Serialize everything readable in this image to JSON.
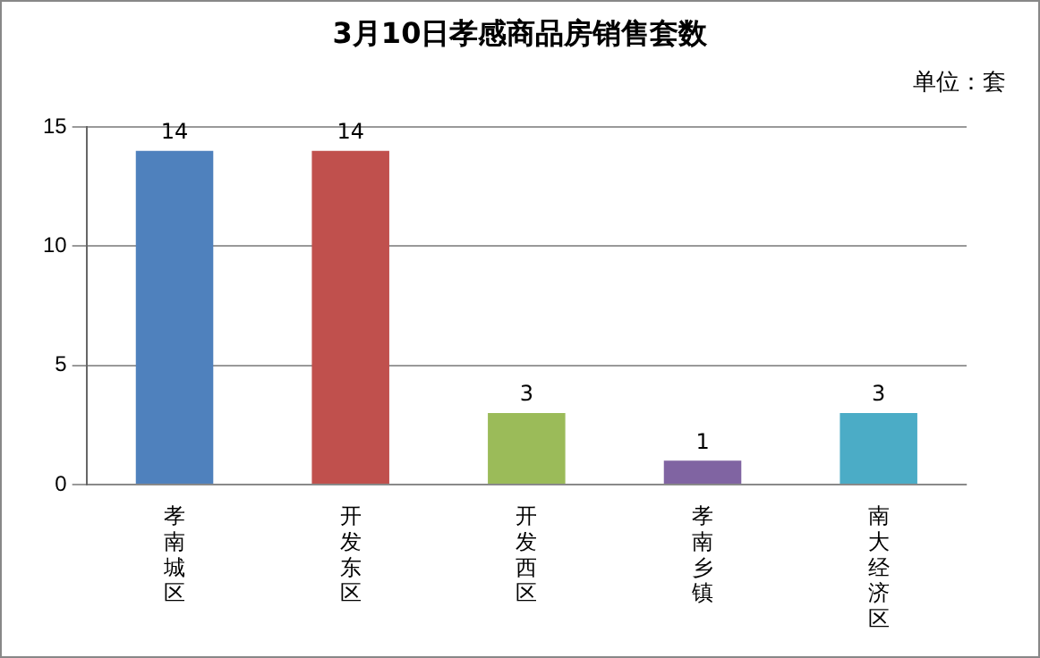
{
  "chart_data": {
    "type": "bar",
    "title": "3月10日孝感商品房销售套数",
    "subtitle": "单位：套",
    "categories": [
      "孝南城区",
      "开发东区",
      "开发西区",
      "孝南乡镇",
      "南大经济区"
    ],
    "values": [
      14,
      14,
      3,
      1,
      3
    ],
    "colors": [
      "#4f81bd",
      "#c0504d",
      "#9bbb59",
      "#8064a2",
      "#4bacc6"
    ],
    "ylim": [
      0,
      15
    ],
    "yticks": [
      0,
      5,
      10,
      15
    ],
    "grid": "y",
    "legend": false,
    "data_labels": true
  }
}
